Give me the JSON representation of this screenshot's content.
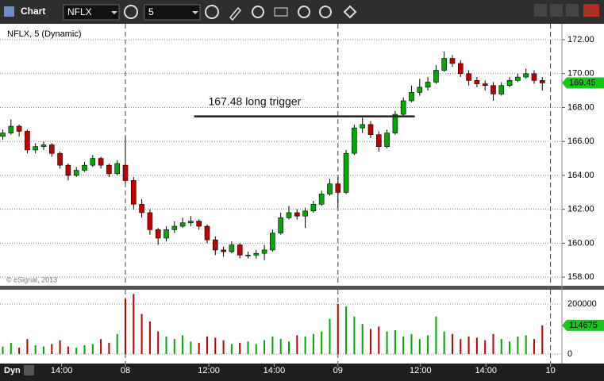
{
  "toolbar": {
    "title": "Chart",
    "symbol": "NFLX",
    "interval": "5"
  },
  "watermark": "© eSignal, 2013",
  "panel_label": "Dyn",
  "chart_data": {
    "type": "candlestick",
    "title": "NFLX, 5 (Dynamic)",
    "up_color": "#00a800",
    "down_color": "#c00000",
    "ohlc": [
      [
        166.3,
        166.7,
        166.1,
        166.5
      ],
      [
        166.5,
        167.3,
        166.4,
        166.9
      ],
      [
        166.9,
        167.0,
        166.3,
        166.6
      ],
      [
        166.6,
        166.7,
        165.3,
        165.5
      ],
      [
        165.5,
        165.9,
        165.3,
        165.7
      ],
      [
        165.7,
        166.0,
        165.5,
        165.8
      ],
      [
        165.8,
        165.9,
        165.1,
        165.3
      ],
      [
        165.3,
        165.4,
        164.4,
        164.6
      ],
      [
        164.6,
        164.7,
        163.7,
        164.0
      ],
      [
        164.0,
        164.5,
        163.9,
        164.3
      ],
      [
        164.3,
        164.8,
        164.2,
        164.6
      ],
      [
        164.6,
        165.2,
        164.5,
        165.0
      ],
      [
        165.0,
        165.1,
        164.4,
        164.6
      ],
      [
        164.6,
        164.7,
        163.9,
        164.1
      ],
      [
        164.1,
        164.9,
        164.0,
        164.7
      ],
      [
        164.6,
        166.3,
        163.5,
        163.7
      ],
      [
        163.7,
        163.9,
        162.0,
        162.3
      ],
      [
        162.3,
        162.6,
        161.5,
        161.8
      ],
      [
        161.8,
        162.0,
        160.5,
        160.8
      ],
      [
        160.8,
        160.9,
        159.9,
        160.3
      ],
      [
        160.3,
        161.0,
        160.1,
        160.8
      ],
      [
        160.8,
        161.3,
        160.6,
        161.0
      ],
      [
        161.0,
        161.5,
        160.9,
        161.2
      ],
      [
        161.2,
        161.6,
        161.0,
        161.3
      ],
      [
        161.3,
        161.4,
        160.8,
        161.0
      ],
      [
        161.0,
        161.1,
        160.0,
        160.2
      ],
      [
        160.2,
        160.4,
        159.3,
        159.6
      ],
      [
        159.6,
        159.8,
        159.2,
        159.5
      ],
      [
        159.5,
        160.1,
        159.4,
        159.9
      ],
      [
        159.9,
        160.0,
        159.1,
        159.3
      ],
      [
        159.3,
        159.5,
        159.1,
        159.3
      ],
      [
        159.3,
        159.6,
        159.1,
        159.4
      ],
      [
        159.4,
        159.9,
        159.0,
        159.6
      ],
      [
        159.6,
        160.8,
        159.5,
        160.6
      ],
      [
        160.6,
        161.8,
        160.5,
        161.5
      ],
      [
        161.5,
        162.2,
        161.4,
        161.8
      ],
      [
        161.8,
        162.0,
        161.4,
        161.6
      ],
      [
        161.6,
        162.1,
        160.9,
        161.9
      ],
      [
        161.9,
        162.5,
        161.8,
        162.3
      ],
      [
        162.3,
        163.1,
        162.2,
        162.9
      ],
      [
        162.9,
        163.8,
        162.8,
        163.5
      ],
      [
        163.5,
        163.9,
        162.1,
        163.0
      ],
      [
        163.0,
        165.5,
        162.9,
        165.3
      ],
      [
        165.3,
        167.0,
        165.2,
        166.8
      ],
      [
        166.8,
        167.4,
        166.5,
        167.0
      ],
      [
        167.0,
        167.2,
        166.2,
        166.4
      ],
      [
        166.4,
        166.6,
        165.4,
        165.7
      ],
      [
        165.7,
        166.7,
        165.6,
        166.5
      ],
      [
        166.5,
        167.8,
        166.4,
        167.6
      ],
      [
        167.6,
        168.6,
        167.5,
        168.4
      ],
      [
        168.4,
        169.3,
        168.3,
        168.9
      ],
      [
        168.9,
        169.7,
        168.7,
        169.2
      ],
      [
        169.2,
        169.8,
        169.0,
        169.5
      ],
      [
        169.5,
        170.5,
        169.4,
        170.2
      ],
      [
        170.2,
        171.3,
        170.1,
        170.9
      ],
      [
        170.9,
        171.1,
        170.4,
        170.6
      ],
      [
        170.6,
        170.8,
        169.8,
        170.0
      ],
      [
        170.0,
        170.2,
        169.3,
        169.6
      ],
      [
        169.6,
        169.8,
        169.2,
        169.4
      ],
      [
        169.4,
        169.6,
        169.0,
        169.3
      ],
      [
        169.3,
        169.5,
        168.4,
        168.8
      ],
      [
        168.8,
        169.5,
        168.7,
        169.3
      ],
      [
        169.3,
        169.8,
        169.2,
        169.6
      ],
      [
        169.6,
        170.0,
        169.5,
        169.8
      ],
      [
        169.8,
        170.3,
        169.7,
        170.0
      ],
      [
        170.0,
        170.2,
        169.4,
        169.6
      ],
      [
        169.6,
        169.8,
        169.0,
        169.45
      ]
    ],
    "xlim": [
      -0.34,
      68.4
    ],
    "xticks": [
      {
        "value": 7.2,
        "label": "14:00"
      },
      {
        "value": 15,
        "label": "08"
      },
      {
        "value": 25.2,
        "label": "12:00"
      },
      {
        "value": 33.2,
        "label": "14:00"
      },
      {
        "value": 41,
        "label": "09"
      },
      {
        "value": 51.1,
        "label": "12:00"
      },
      {
        "value": 59.1,
        "label": "14:00"
      },
      {
        "value": 67,
        "label": "10"
      }
    ],
    "session_ticks": [
      1,
      4,
      7
    ],
    "ylim": [
      157.49,
      172.94
    ],
    "yticks": [
      {
        "value": 158,
        "label": "158.00"
      },
      {
        "value": 160,
        "label": "160.00"
      },
      {
        "value": 162,
        "label": "162.00"
      },
      {
        "value": 164,
        "label": "164.00"
      },
      {
        "value": 166,
        "label": "166.00"
      },
      {
        "value": 168,
        "label": "168.00"
      },
      {
        "value": 170,
        "label": "170.00"
      },
      {
        "value": 172,
        "label": "172.00"
      }
    ],
    "grid": true,
    "annotation": {
      "text": "167.48 long trigger",
      "value": 167.48,
      "x": [
        23.4,
        50.4
      ]
    },
    "volume": {
      "values": [
        30000,
        45000,
        25000,
        60000,
        35000,
        30000,
        40000,
        55000,
        30000,
        25000,
        35000,
        40000,
        60000,
        45000,
        80000,
        220000,
        240000,
        160000,
        130000,
        90000,
        70000,
        60000,
        75000,
        50000,
        45000,
        70000,
        65000,
        55000,
        40000,
        45000,
        50000,
        40000,
        55000,
        70000,
        60000,
        50000,
        75000,
        70000,
        80000,
        90000,
        140000,
        200000,
        190000,
        150000,
        120000,
        100000,
        110000,
        90000,
        95000,
        70000,
        80000,
        60000,
        75000,
        150000,
        90000,
        80000,
        60000,
        70000,
        65000,
        55000,
        80000,
        60000,
        50000,
        70000,
        75000,
        60000,
        114675
      ],
      "ylim": [
        -38000,
        257000
      ],
      "yticks": [
        0,
        200000
      ]
    }
  }
}
